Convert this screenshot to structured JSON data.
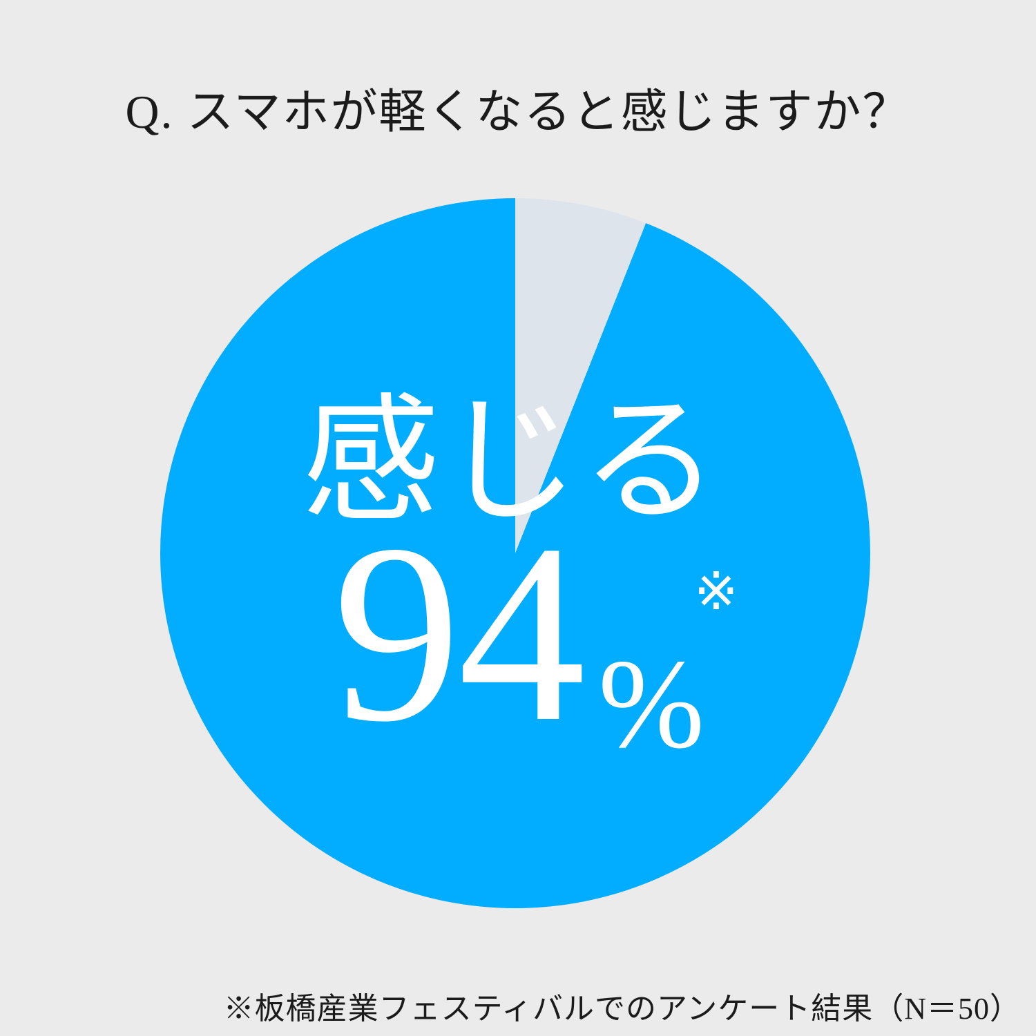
{
  "page": {
    "background": "#ebebeb",
    "text_color": "#1b1b1b"
  },
  "title": {
    "text": "Q. スマホが軽くなると感じますか？"
  },
  "chart_data": {
    "type": "pie",
    "title": "Q. スマホが軽くなると感じますか？",
    "start_angle": "12-o-clock",
    "direction": "clockwise",
    "legend_position": "none",
    "label_position": "inside",
    "slices": [
      {
        "label": "感じる",
        "value": 94,
        "color": "#02acff"
      },
      {
        "label": "",
        "value": 6,
        "color": "#dee4ec"
      }
    ]
  },
  "labels": {
    "percent_sign": "%",
    "note_mark": "※"
  },
  "footnote": {
    "text": "※板橋産業フェスティバルでのアンケート結果（N＝50）"
  }
}
